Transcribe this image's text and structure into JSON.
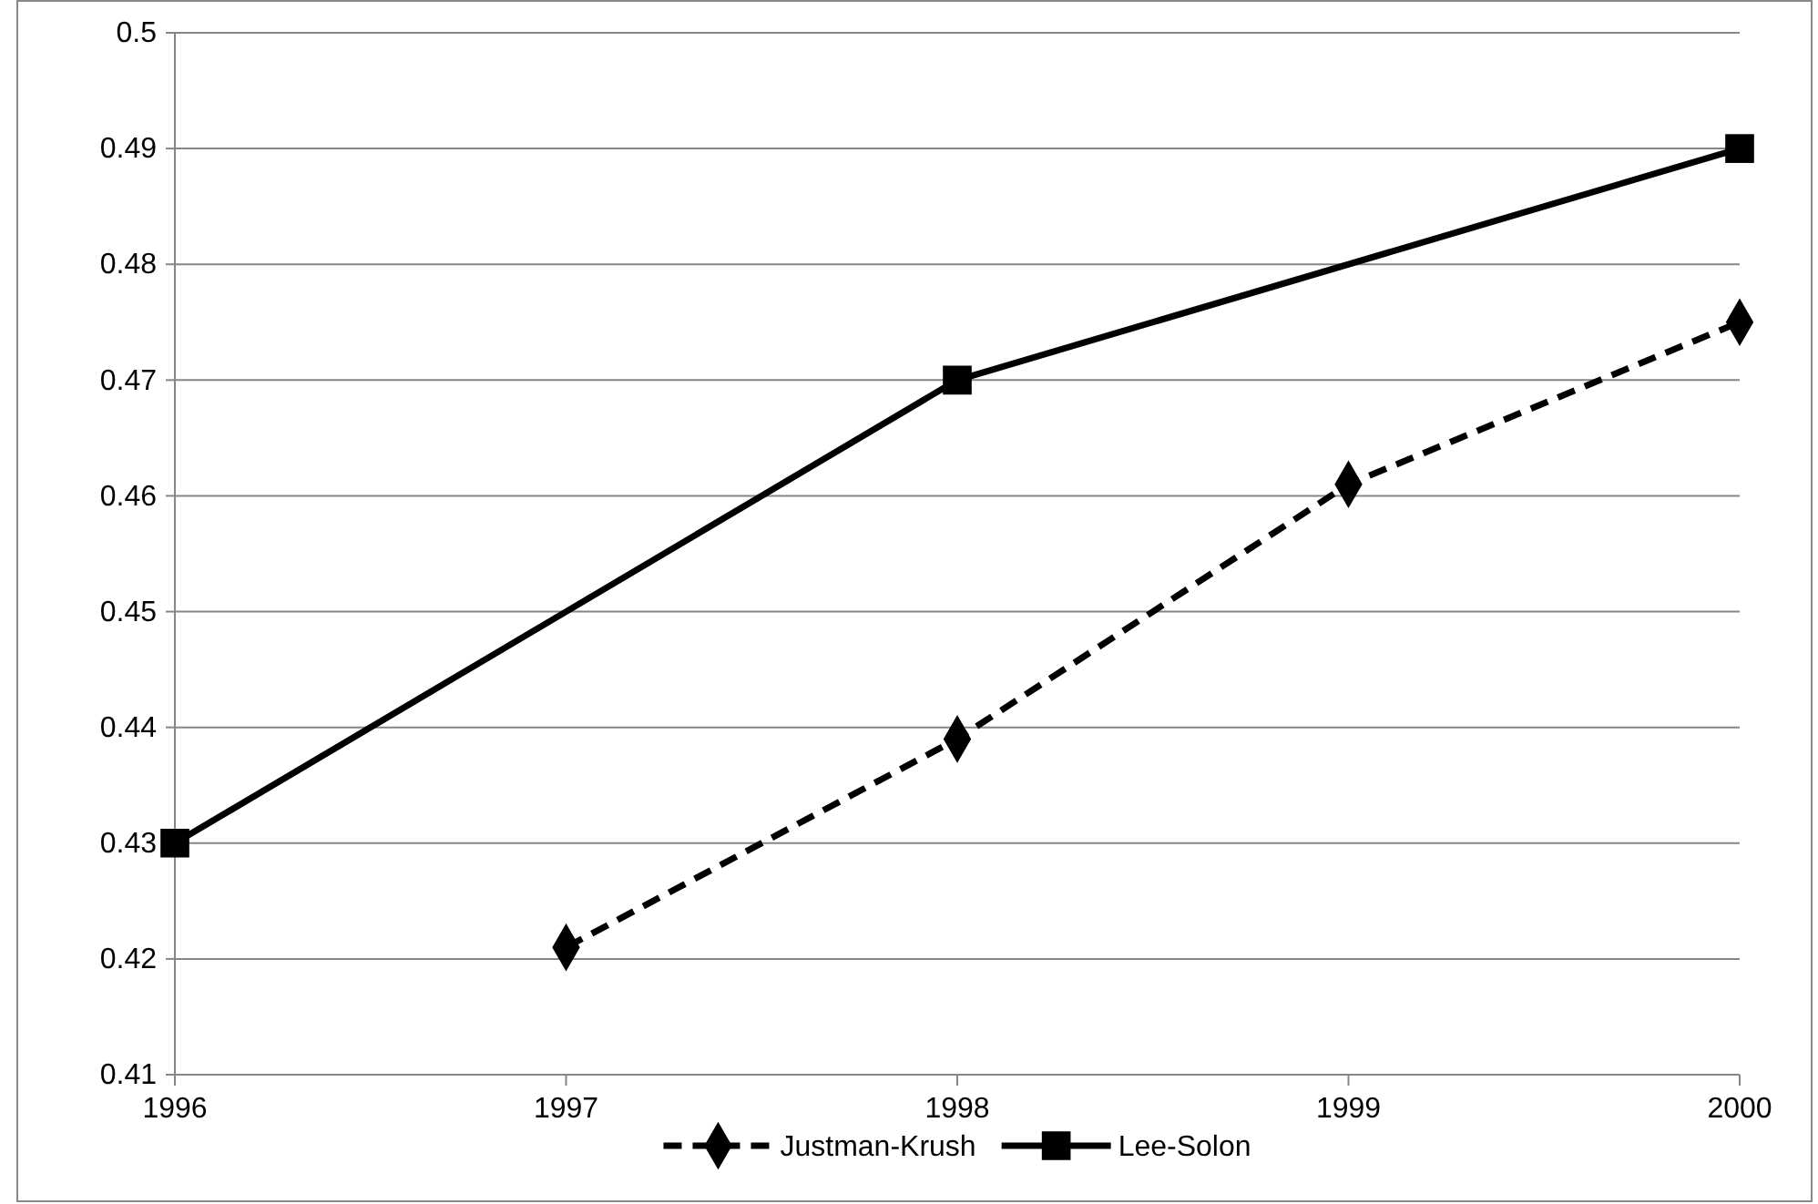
{
  "chart_data": {
    "type": "line",
    "xlim": [
      1996,
      2000
    ],
    "xticks": [
      1996,
      1997,
      1998,
      1999,
      2000
    ],
    "ylim": [
      0.41,
      0.5
    ],
    "yticks": [
      0.41,
      0.42,
      0.43,
      0.44,
      0.45,
      0.46,
      0.47,
      0.48,
      0.49,
      0.5
    ],
    "grid": "y",
    "legend": "bottom",
    "series": [
      {
        "name": "Justman-Krush",
        "color": "#000000",
        "x": [
          1997,
          1998,
          1999,
          2000
        ],
        "values": [
          0.421,
          0.439,
          0.461,
          0.475
        ],
        "marker": "diamond",
        "line_style": "dashed"
      },
      {
        "name": "Lee-Solon",
        "color": "#000000",
        "x": [
          1996,
          1998,
          2000
        ],
        "values": [
          0.43,
          0.47,
          0.49
        ],
        "marker": "square",
        "line_style": "solid"
      }
    ]
  }
}
